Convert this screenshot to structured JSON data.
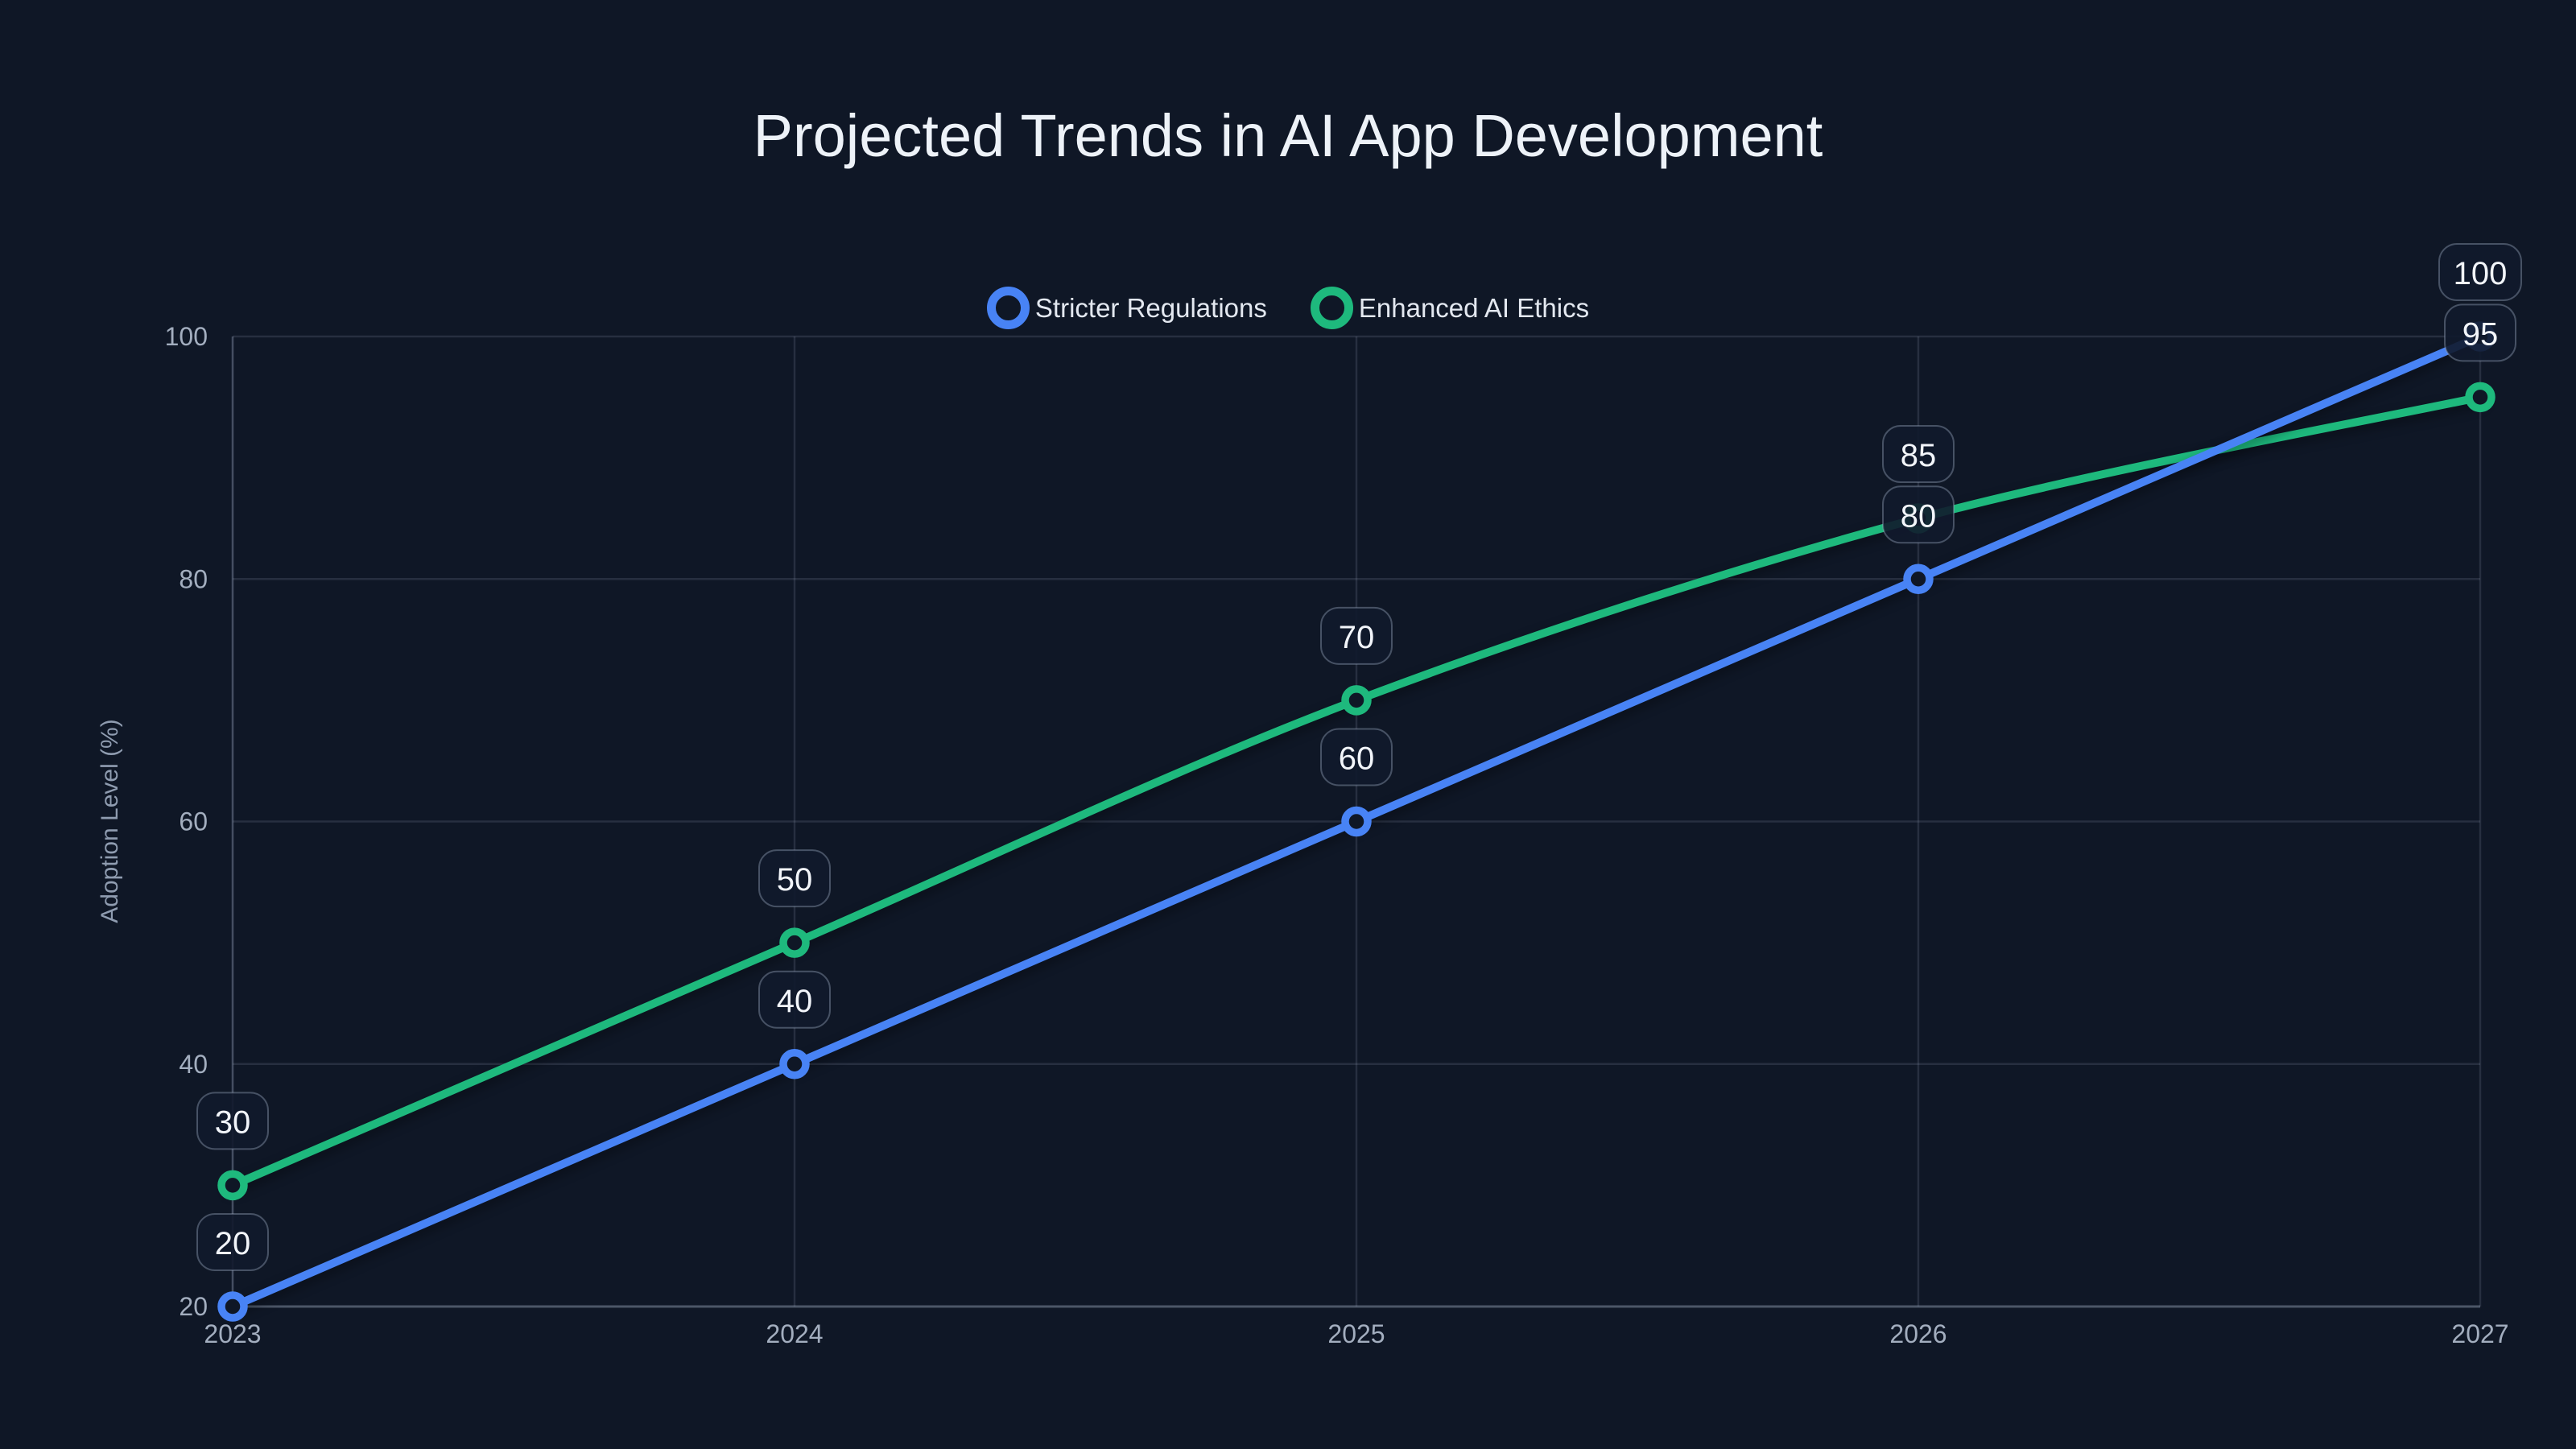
{
  "page": {
    "background": "#0f1726"
  },
  "header": {
    "title": "Projected Trends in AI App Development"
  },
  "chart_data": {
    "type": "line",
    "title": "Projected Trends in AI App Development",
    "x": [
      2023,
      2024,
      2025,
      2026,
      2027
    ],
    "xtick_labels": [
      "2023",
      "2024",
      "2025",
      "2026",
      "2027"
    ],
    "series": [
      {
        "name": "Stricter Regulations",
        "color": "#4883f5",
        "values": [
          20,
          40,
          60,
          80,
          100
        ]
      },
      {
        "name": "Enhanced AI Ethics",
        "color": "#1eb97d",
        "values": [
          30,
          50,
          70,
          85,
          95
        ]
      }
    ],
    "xlabel": "",
    "ylabel": "Adoption Level (%)",
    "ylim": [
      20,
      100
    ],
    "yticks": [
      20,
      40,
      60,
      80,
      100
    ],
    "grid": true,
    "legend_position": "top",
    "point_labels": true,
    "styles": {
      "background": "#0f1726",
      "title_color": "#edf2f8",
      "legend_text_color": "#e3e8f0",
      "tick_color": "#a3aebf",
      "axis_title_color": "#8f9cb0",
      "grid_color": "rgba(148,163,184,0.18)",
      "y_axis_color": "rgba(148,163,184,0.28)",
      "x_axis_color": "rgba(148,163,184,0.45)",
      "badge_bg": "rgba(17,26,44,0.9)",
      "badge_border": "rgba(148,163,184,0.42)",
      "badge_text_color": "#f2f5fa",
      "marker_fill": "#0f1726"
    }
  }
}
